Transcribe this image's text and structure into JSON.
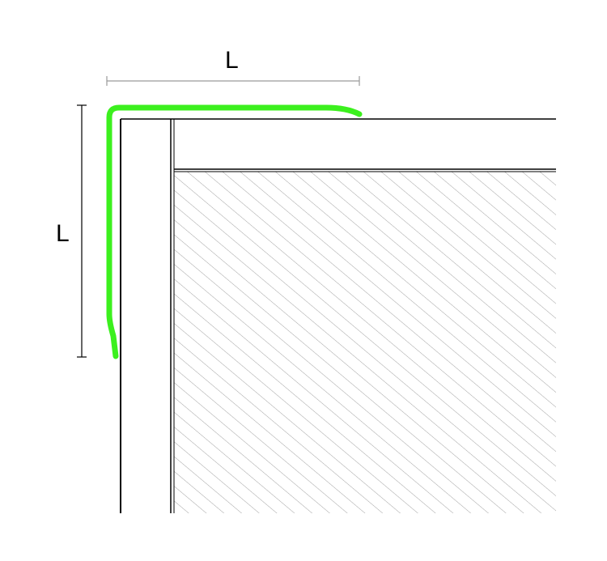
{
  "dimensions": {
    "horizontal_label": "L",
    "vertical_label": "L"
  },
  "colors": {
    "profile": "#3cf01e",
    "line": "#000000",
    "dimension_line": "#9a9a9a",
    "hatch": "#8a8a8a"
  },
  "elements": {
    "profile": "l-shaped-edge-trim-profile",
    "wall": "wall-section",
    "tile": "tile-layer",
    "substrate": "hatched-substrate"
  }
}
